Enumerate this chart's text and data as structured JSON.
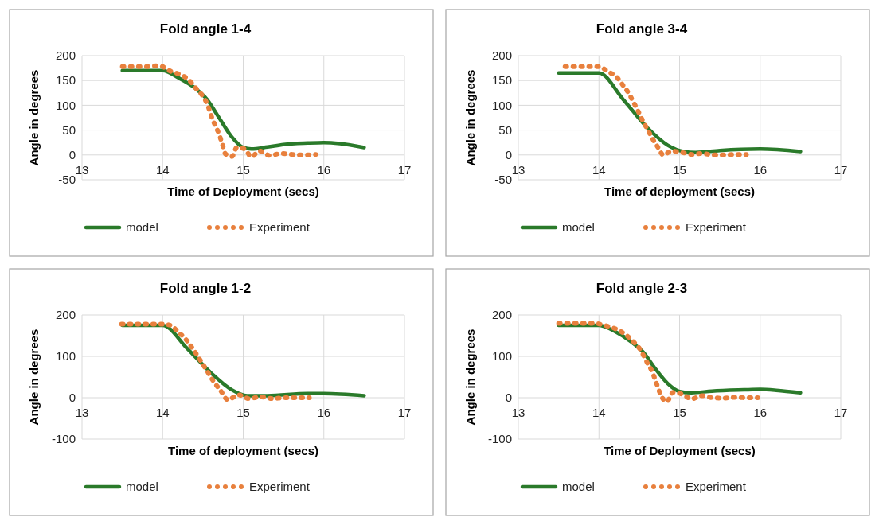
{
  "chart_data": [
    {
      "type": "line",
      "title": "Fold angle 1-4",
      "xlabel": "Time of Deployment (secs)",
      "ylabel": "Angle in degrees",
      "xlim": [
        13,
        17
      ],
      "xticks": [
        13,
        14,
        15,
        16,
        17
      ],
      "ylim": [
        -50,
        200
      ],
      "yticks": [
        -50,
        0,
        50,
        100,
        150,
        200
      ],
      "grid": true,
      "legend": "bottom",
      "series": [
        {
          "name": "model",
          "color": "#2a7a2a",
          "line_style": "solid",
          "x": [
            13.5,
            14,
            14.2,
            14.4,
            14.55,
            14.7,
            14.85,
            15,
            15.1,
            15.3,
            15.5,
            15.8,
            16,
            16.2,
            16.5
          ],
          "values": [
            170,
            170,
            155,
            135,
            112,
            75,
            38,
            15,
            12,
            16,
            21,
            24,
            25,
            23,
            15
          ]
        },
        {
          "name": "Experiment",
          "color": "#e8803d",
          "line_style": "dotted",
          "x": [
            13.5,
            13.65,
            13.8,
            13.96,
            14.08,
            14.2,
            14.32,
            14.41,
            14.5,
            14.56,
            14.6,
            14.65,
            14.7,
            14.74,
            14.78,
            14.86,
            14.92,
            15.02,
            15.1,
            15.2,
            15.33,
            15.47,
            15.61,
            15.75,
            15.9
          ],
          "values": [
            178,
            178,
            178,
            180,
            170,
            163,
            152,
            135,
            118,
            100,
            80,
            60,
            42,
            22,
            2,
            -3,
            15,
            12,
            -4,
            8,
            -1,
            3,
            1,
            0,
            1
          ]
        }
      ]
    },
    {
      "type": "line",
      "title": "Fold angle 3-4",
      "xlabel": "Time of deployment (secs)",
      "ylabel": "Angle in degrees",
      "xlim": [
        13,
        17
      ],
      "xticks": [
        13,
        14,
        15,
        16,
        17
      ],
      "ylim": [
        -50,
        200
      ],
      "yticks": [
        -50,
        0,
        50,
        100,
        150,
        200
      ],
      "grid": true,
      "legend": "bottom",
      "series": [
        {
          "name": "model",
          "color": "#2a7a2a",
          "line_style": "solid",
          "x": [
            13.5,
            14,
            14.3,
            14.6,
            14.85,
            15.05,
            15.2,
            15.5,
            16,
            16.5
          ],
          "values": [
            165,
            165,
            112,
            55,
            20,
            7,
            5,
            9,
            12,
            7
          ]
        },
        {
          "name": "Experiment",
          "color": "#e8803d",
          "line_style": "dotted",
          "x": [
            13.58,
            13.72,
            13.86,
            14,
            14.11,
            14.22,
            14.3,
            14.37,
            14.43,
            14.49,
            14.54,
            14.6,
            14.66,
            14.73,
            14.8,
            14.9,
            15.03,
            15.16,
            15.28,
            15.42,
            15.55,
            15.69,
            15.83
          ],
          "values": [
            178,
            178,
            178,
            178,
            168,
            157,
            140,
            124,
            106,
            87,
            70,
            52,
            34,
            16,
            0,
            8,
            5,
            1,
            3,
            0,
            0,
            1,
            1
          ]
        }
      ]
    },
    {
      "type": "line",
      "title": "Fold angle 1-2",
      "xlabel": "Time of deployment (secs)",
      "ylabel": "Angle in degrees",
      "xlim": [
        13,
        17
      ],
      "xticks": [
        13,
        14,
        15,
        16,
        17
      ],
      "ylim": [
        -100,
        200
      ],
      "yticks": [
        -100,
        0,
        100,
        200
      ],
      "grid": true,
      "legend": "bottom",
      "series": [
        {
          "name": "model",
          "color": "#2a7a2a",
          "line_style": "solid",
          "x": [
            13.5,
            14,
            14.3,
            14.6,
            14.85,
            15.05,
            15.3,
            15.8,
            16,
            16.5
          ],
          "values": [
            175,
            175,
            120,
            60,
            20,
            5,
            5,
            10,
            10,
            5
          ]
        },
        {
          "name": "Experiment",
          "color": "#e8803d",
          "line_style": "dotted",
          "x": [
            13.49,
            13.64,
            13.79,
            13.94,
            14.08,
            14.2,
            14.3,
            14.39,
            14.47,
            14.55,
            14.63,
            14.72,
            14.81,
            14.94,
            15.07,
            15.22,
            15.36,
            15.51,
            15.66,
            15.82
          ],
          "values": [
            178,
            178,
            178,
            178,
            176,
            158,
            138,
            114,
            90,
            65,
            40,
            17,
            -5,
            7,
            -2,
            2,
            -2,
            0,
            0,
            0
          ]
        }
      ]
    },
    {
      "type": "line",
      "title": "Fold angle 2-3",
      "xlabel": "Time of Deployment (secs)",
      "ylabel": "Angle in degrees",
      "xlim": [
        13,
        17
      ],
      "xticks": [
        13,
        14,
        15,
        16,
        17
      ],
      "ylim": [
        -100,
        200
      ],
      "yticks": [
        -100,
        0,
        100,
        200
      ],
      "grid": true,
      "legend": "bottom",
      "series": [
        {
          "name": "model",
          "color": "#2a7a2a",
          "line_style": "solid",
          "x": [
            13.5,
            14,
            14.2,
            14.4,
            14.55,
            14.7,
            14.85,
            15,
            15.15,
            15.4,
            15.8,
            16,
            16.2,
            16.5
          ],
          "values": [
            175,
            175,
            160,
            135,
            110,
            70,
            35,
            15,
            12,
            16,
            19,
            20,
            18,
            12
          ]
        },
        {
          "name": "Experiment",
          "color": "#e8803d",
          "line_style": "dotted",
          "x": [
            13.5,
            13.64,
            13.79,
            13.93,
            14.07,
            14.2,
            14.32,
            14.43,
            14.52,
            14.59,
            14.66,
            14.71,
            14.76,
            14.84,
            14.92,
            15.04,
            15.15,
            15.27,
            15.41,
            15.55,
            15.69,
            15.83,
            15.97
          ],
          "values": [
            180,
            180,
            180,
            180,
            175,
            167,
            154,
            135,
            114,
            88,
            63,
            37,
            10,
            -10,
            13,
            8,
            -3,
            5,
            0,
            -1,
            1,
            0,
            0
          ]
        }
      ]
    }
  ]
}
